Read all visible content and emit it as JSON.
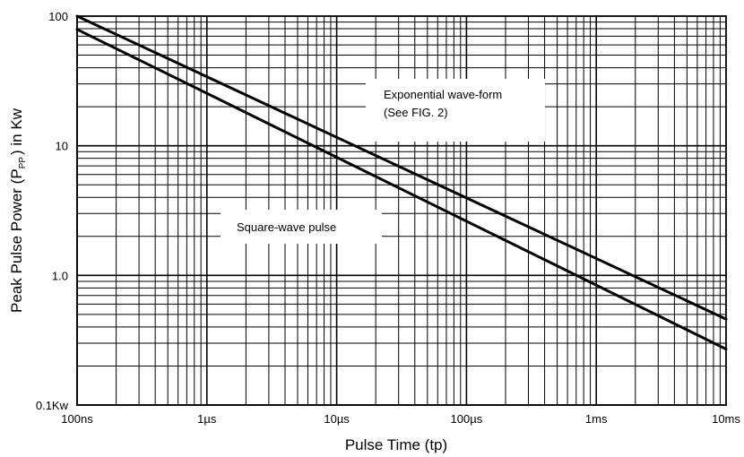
{
  "chart_data": {
    "type": "line",
    "x_scale": "log",
    "y_scale": "log",
    "xlim_seconds": [
      1e-07,
      0.01
    ],
    "ylim_kw": [
      0.1,
      100
    ],
    "grid": true,
    "xlabel": "Pulse Time (tp)",
    "ylabel": {
      "main": "Peak Pulse Power (P",
      "sub": "PP",
      "tail": ") in Kw"
    },
    "x_ticks": [
      {
        "value": 1e-07,
        "label": "100ns"
      },
      {
        "value": 1e-06,
        "label": "1µs"
      },
      {
        "value": 1e-05,
        "label": "10µs"
      },
      {
        "value": 0.0001,
        "label": "100µs"
      },
      {
        "value": 0.001,
        "label": "1ms"
      },
      {
        "value": 0.01,
        "label": "10ms"
      }
    ],
    "y_ticks": [
      {
        "value": 0.1,
        "label": "0.1Kw"
      },
      {
        "value": 1,
        "label": "1.0"
      },
      {
        "value": 10,
        "label": "10"
      },
      {
        "value": 100,
        "label": "100"
      }
    ],
    "series": [
      {
        "x": [
          1e-07,
          0.01
        ],
        "y": [
          100,
          0.46
        ]
      },
      {
        "x": [
          1e-07,
          0.01
        ],
        "y": [
          79,
          0.27
        ]
      }
    ],
    "annotations": [
      {
        "lines": [
          "Exponential wave-form",
          "(See FIG. 2)"
        ]
      },
      {
        "lines": [
          "Square-wave pulse"
        ]
      }
    ]
  }
}
